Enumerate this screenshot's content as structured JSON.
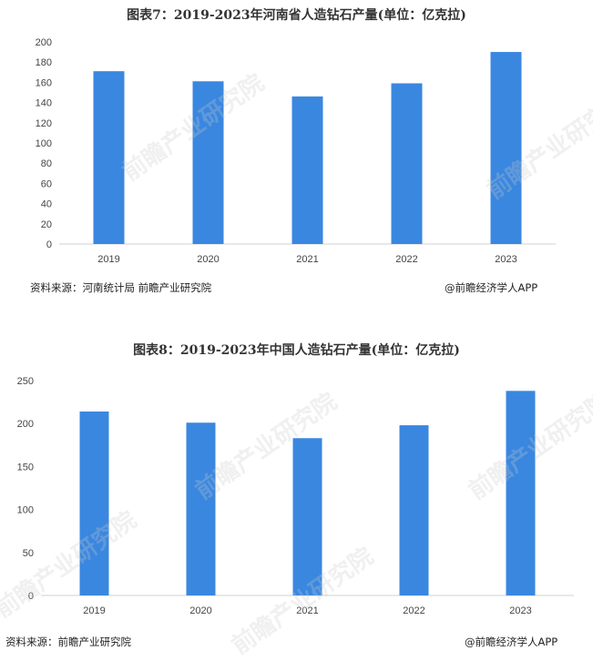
{
  "chart_data": [
    {
      "type": "bar",
      "title": "图表7：2019-2023年河南省人造钻石产量(单位：亿克拉)",
      "categories": [
        "2019",
        "2020",
        "2021",
        "2022",
        "2023"
      ],
      "values": [
        171,
        161,
        146,
        159,
        190
      ],
      "ylim": [
        0,
        200
      ],
      "yticks": [
        0,
        20,
        40,
        60,
        80,
        100,
        120,
        140,
        160,
        180,
        200
      ],
      "grid": false,
      "color": "#3a87e0",
      "source": "资料来源：河南统计局 前瞻产业研究院",
      "credit": "@前瞻经济学人APP"
    },
    {
      "type": "bar",
      "title": "图表8：2019-2023年中国人造钻石产量(单位：亿克拉)",
      "categories": [
        "2019",
        "2020",
        "2021",
        "2022",
        "2023"
      ],
      "values": [
        214,
        201,
        183,
        198,
        238
      ],
      "ylim": [
        0,
        250
      ],
      "yticks": [
        0,
        50,
        100,
        150,
        200,
        250
      ],
      "grid": false,
      "color": "#3a87e0",
      "source": "资料来源：前瞻产业研究院",
      "credit": "@前瞻经济学人APP"
    }
  ],
  "watermark_text": "前瞻产业研究院"
}
